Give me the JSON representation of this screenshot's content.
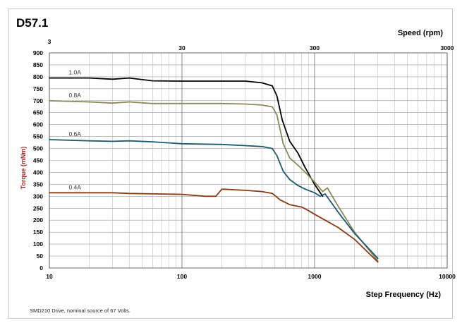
{
  "chart_data": {
    "type": "line",
    "title": "D57.1",
    "xlabel": "Step Frequency (Hz)",
    "x2label": "Speed (rpm)",
    "ylabel": "Torque (mNm)",
    "x_scale": "log",
    "xlim": [
      10,
      10000
    ],
    "x2lim": [
      3,
      3000
    ],
    "ylim": [
      0,
      900
    ],
    "y_ticks": [
      "0",
      "50",
      "100",
      "150",
      "200",
      "250",
      "300",
      "350",
      "400",
      "450",
      "500",
      "550",
      "600",
      "650",
      "700",
      "750",
      "800",
      "850",
      "900"
    ],
    "x_ticks": [
      "10",
      "100",
      "1000",
      "10000"
    ],
    "x2_ticks": [
      "3",
      "30",
      "300",
      "3000"
    ],
    "grid": true,
    "footnote": "SMD210  Drive, nominal source of 67 Volts.",
    "colors": {
      "1.0A": "#000000",
      "0.8A": "#8a8a5c",
      "0.6A": "#1b5a70",
      "0.4A": "#8b3a14"
    },
    "series": [
      {
        "name": "1.0A",
        "x": [
          10,
          20,
          30,
          40,
          60,
          100,
          200,
          300,
          400,
          480,
          520,
          570,
          650,
          750,
          850,
          1000,
          1150
        ],
        "y": [
          795,
          795,
          790,
          795,
          783,
          782,
          782,
          782,
          775,
          762,
          720,
          620,
          530,
          480,
          420,
          350,
          300
        ]
      },
      {
        "name": "0.8A",
        "x": [
          10,
          20,
          30,
          40,
          60,
          100,
          200,
          300,
          400,
          480,
          520,
          580,
          650,
          750,
          850,
          1000,
          1150,
          1250,
          1500,
          2000,
          3000
        ],
        "y": [
          700,
          695,
          690,
          695,
          688,
          688,
          688,
          686,
          682,
          674,
          640,
          520,
          460,
          430,
          400,
          360,
          320,
          335,
          260,
          150,
          30
        ]
      },
      {
        "name": "0.6A",
        "x": [
          10,
          20,
          30,
          40,
          60,
          100,
          200,
          300,
          400,
          480,
          520,
          580,
          650,
          750,
          850,
          1000,
          1100,
          1200,
          1500,
          2000,
          3000
        ],
        "y": [
          537,
          532,
          530,
          532,
          528,
          520,
          517,
          512,
          508,
          500,
          470,
          405,
          370,
          345,
          330,
          315,
          300,
          310,
          235,
          145,
          40
        ]
      },
      {
        "name": "0.4A",
        "x": [
          10,
          20,
          30,
          40,
          60,
          100,
          150,
          180,
          200,
          300,
          400,
          480,
          550,
          650,
          800,
          900,
          1000,
          1200,
          1500,
          2000,
          3000
        ],
        "y": [
          315,
          315,
          315,
          312,
          310,
          308,
          300,
          300,
          330,
          325,
          320,
          312,
          285,
          265,
          255,
          240,
          225,
          200,
          170,
          120,
          25
        ]
      }
    ]
  }
}
